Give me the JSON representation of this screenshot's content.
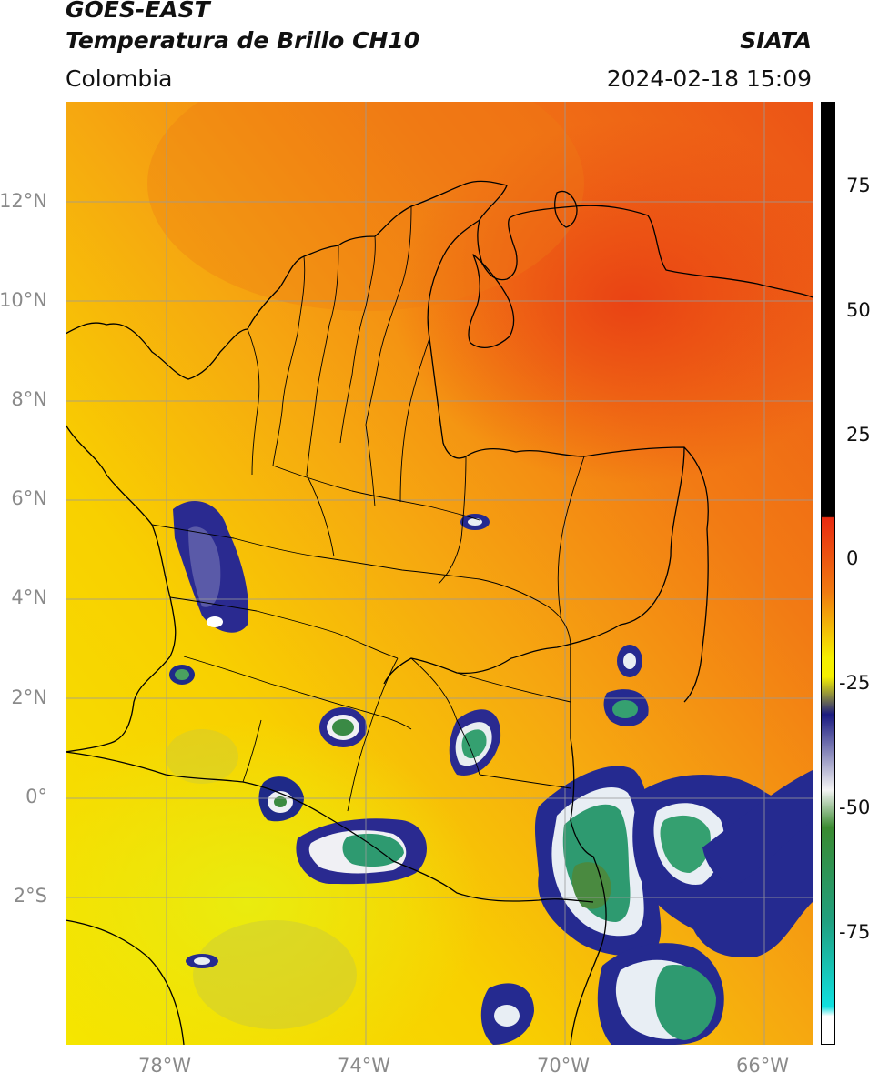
{
  "header": {
    "satellite": "GOES-EAST",
    "product": "Temperatura de Brillo CH10",
    "region": "Colombia",
    "organization": "SIATA",
    "timestamp": "2024-02-18 15:09"
  },
  "map": {
    "lat_ticks": [
      "12°N",
      "10°N",
      "8°N",
      "6°N",
      "4°N",
      "2°N",
      "0°",
      "2°S"
    ],
    "lon_ticks": [
      "78°W",
      "74°W",
      "70°W",
      "66°W"
    ]
  },
  "colorbar": {
    "ticks": [
      "75",
      "50",
      "25",
      "0",
      "-25",
      "-50",
      "-75"
    ],
    "colors": {
      "black": "#000000",
      "red": "#e82a10",
      "orange": "#f07a10",
      "yellow": "#f5f000",
      "olive": "#8a8a40",
      "navy": "#1a1a80",
      "white": "#f4f4f4",
      "green": "#3a8a30",
      "teal": "#20a080",
      "cyan": "#10e0e0"
    }
  }
}
